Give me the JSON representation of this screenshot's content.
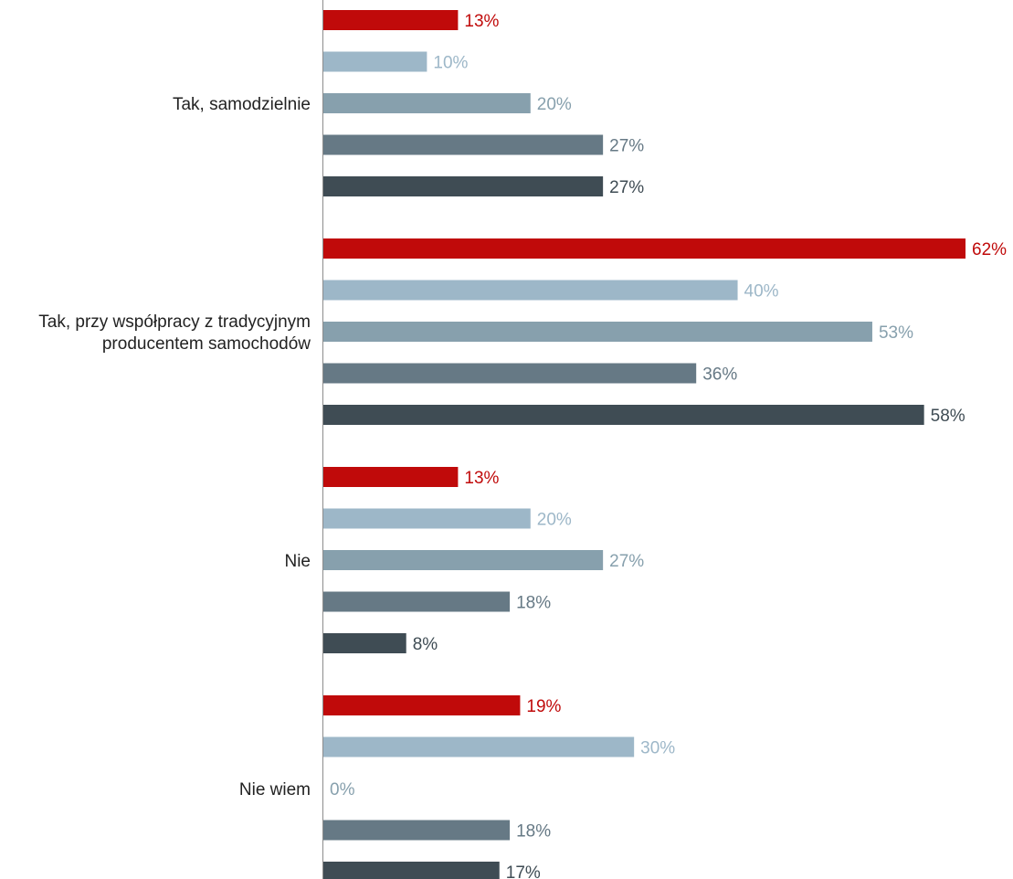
{
  "chart_data": {
    "type": "bar",
    "orientation": "horizontal",
    "value_suffix": "%",
    "categories": [
      [
        "Tak, samodzielnie"
      ],
      [
        "Tak, przy współpracy z tradycyjnym",
        "producentem samochodów"
      ],
      [
        "Nie"
      ],
      [
        "Nie wiem"
      ]
    ],
    "series": [
      {
        "color": "#c00a0a",
        "values": [
          13,
          62,
          13,
          19
        ]
      },
      {
        "color": "#9db7c8",
        "values": [
          10,
          40,
          20,
          30
        ]
      },
      {
        "color": "#87a0ad",
        "values": [
          20,
          53,
          27,
          0
        ]
      },
      {
        "color": "#667985",
        "values": [
          27,
          36,
          18,
          18
        ]
      },
      {
        "color": "#3f4c54",
        "values": [
          27,
          58,
          8,
          17
        ]
      }
    ],
    "xlim": [
      0,
      62
    ],
    "grid": false,
    "legend": "none",
    "axis_color": "#8c8c8c"
  }
}
